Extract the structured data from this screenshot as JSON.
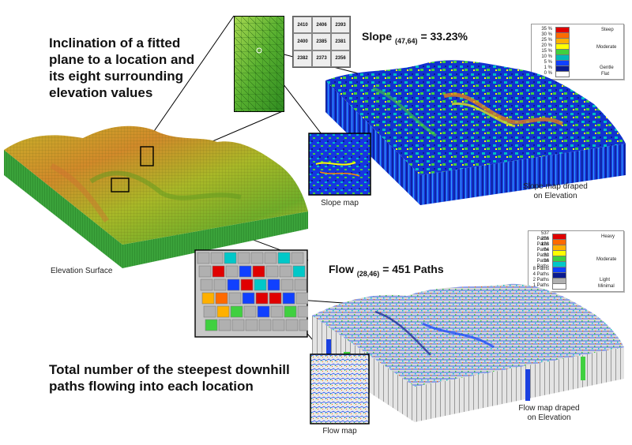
{
  "headline_top": {
    "line1": "Inclination of a fitted",
    "line2": "plane to a location and",
    "line3": "its eight surrounding",
    "line4": "elevation values"
  },
  "headline_bottom": {
    "line1": "Total number of the steepest downhill",
    "line2": "paths flowing into each location"
  },
  "slope_eq": {
    "prefix": "Slope",
    "sub": "(47,64)",
    "value": "= 33.23%"
  },
  "flow_eq": {
    "prefix": "Flow",
    "sub": "(28,46)",
    "value": "= 451 Paths"
  },
  "captions": {
    "elevation": "Elevation Surface",
    "slope_map": "Slope map",
    "slope_draped_1": "Slope map draped",
    "slope_draped_2": "on Elevation",
    "flow_map": "Flow map",
    "flow_draped_1": "Flow map draped",
    "flow_draped_2": "on Elevation"
  },
  "elev_grid": {
    "values": [
      "2410",
      "2406",
      "2393",
      "2400",
      "2385",
      "2381",
      "2382",
      "2373",
      "2356"
    ]
  },
  "slope_legend": {
    "items": [
      {
        "label": "35 %",
        "color": "#e00000"
      },
      {
        "label": "30 %",
        "color": "#ff6a00"
      },
      {
        "label": "25 %",
        "color": "#ffb000"
      },
      {
        "label": "20 %",
        "color": "#ffff00"
      },
      {
        "label": "15 %",
        "color": "#40d040"
      },
      {
        "label": "10 %",
        "color": "#00b8b8"
      },
      {
        "label": "5 %",
        "color": "#1040ff"
      },
      {
        "label": "1 %",
        "color": "#0a1a90"
      },
      {
        "label": "0 %",
        "color": "#ffffff"
      }
    ],
    "qual_top": "Steep",
    "qual_mid": "Moderate",
    "qual_gentle": "Gentle",
    "qual_bottom": "Flat"
  },
  "flow_legend": {
    "items": [
      {
        "label": "537 Paths",
        "color": "#e00000"
      },
      {
        "label": "256 Paths",
        "color": "#ff6a00"
      },
      {
        "label": "128 Paths",
        "color": "#ffb000"
      },
      {
        "label": "64 Paths",
        "color": "#ffff00"
      },
      {
        "label": "32 Paths",
        "color": "#40d040"
      },
      {
        "label": "16 Paths",
        "color": "#00c8c8"
      },
      {
        "label": "8 Paths",
        "color": "#1040ff"
      },
      {
        "label": "4 Paths",
        "color": "#0a1a90"
      },
      {
        "label": "2 Paths",
        "color": "#b0b0b0"
      },
      {
        "label": "1 Paths",
        "color": "#ffffff"
      }
    ],
    "qual_top": "Heavy",
    "qual_mid": "Moderate",
    "qual_light": "Light",
    "qual_bottom": "Minimal"
  }
}
